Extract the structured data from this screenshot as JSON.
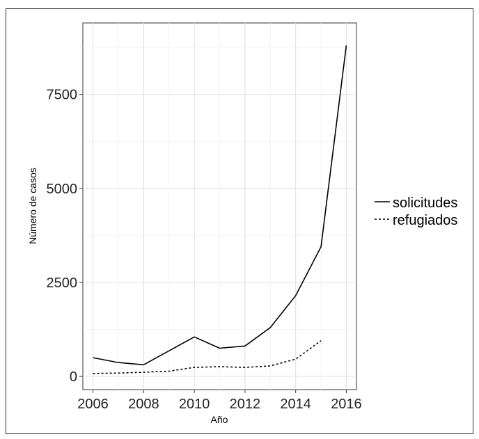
{
  "chart_data": {
    "type": "line",
    "xlabel": "Año",
    "ylabel": "Número de casos",
    "xlim": [
      2005.6,
      2016.4
    ],
    "ylim": [
      -350,
      9400
    ],
    "x_ticks": [
      2006,
      2008,
      2010,
      2012,
      2014,
      2016
    ],
    "y_ticks": [
      0,
      2500,
      5000,
      7500
    ],
    "grid": true,
    "legend_position": "right",
    "series": [
      {
        "name": "solicitudes",
        "line_style": "solid",
        "x": [
          2006,
          2007,
          2008,
          2009,
          2010,
          2011,
          2012,
          2013,
          2014,
          2015,
          2016
        ],
        "y": [
          500,
          370,
          310,
          680,
          1050,
          750,
          810,
          1300,
          2150,
          3450,
          8800
        ]
      },
      {
        "name": "refugiados",
        "line_style": "dashed",
        "x": [
          2006,
          2007,
          2008,
          2009,
          2010,
          2011,
          2012,
          2013,
          2014,
          2015
        ],
        "y": [
          80,
          90,
          110,
          140,
          240,
          260,
          240,
          280,
          460,
          950
        ]
      }
    ]
  }
}
